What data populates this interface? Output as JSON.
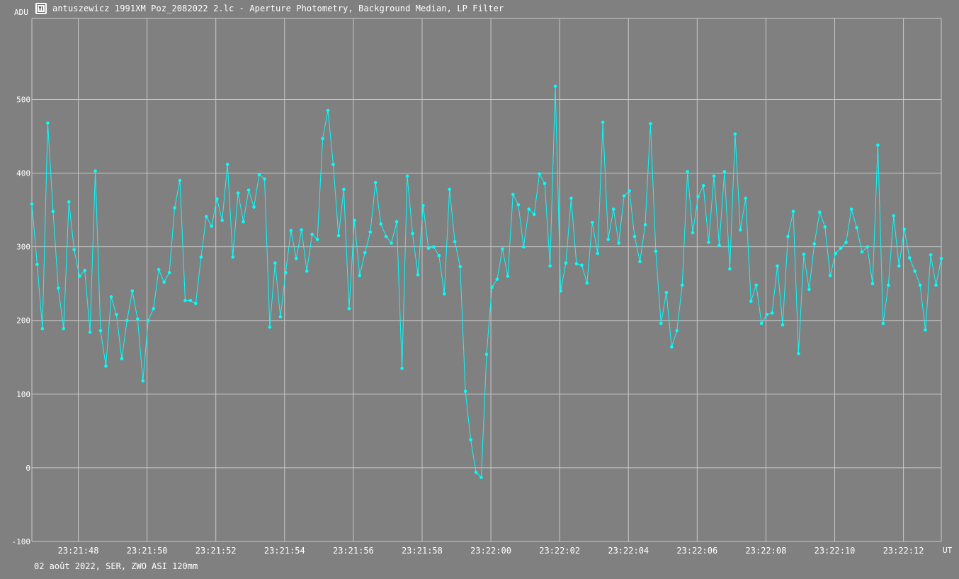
{
  "window": {
    "icon": "chart-app-icon",
    "title": "antuszewicz 1991XM Poz_2082022 2.lc - Aperture Photometry, Background Median, LP Filter"
  },
  "footer": {
    "info": "02 août 2022, SER, ZWO ASI 120mm"
  },
  "colors": {
    "background": "#808080",
    "grid": "#c8c8c8",
    "series": "#00ffff",
    "text": "#ffffff"
  },
  "chart_data": {
    "type": "line",
    "title": "",
    "ylabel": "ADU",
    "xlabel": "UT",
    "ylim": [
      -100,
      610
    ],
    "xlim": [
      "23:21:46.65",
      "23:22:13.10"
    ],
    "grid": true,
    "y_ticks": [
      -100,
      0,
      100,
      200,
      300,
      400,
      500
    ],
    "x_ticks": [
      "23:21:48",
      "23:21:50",
      "23:21:52",
      "23:21:54",
      "23:21:56",
      "23:21:58",
      "23:22:00",
      "23:22:02",
      "23:22:04",
      "23:22:06",
      "23:22:08",
      "23:22:10",
      "23:22:12"
    ],
    "marker": "dot",
    "series": [
      {
        "values": [
          358,
          276,
          189,
          468,
          348,
          244,
          189,
          361,
          296,
          260,
          268,
          184,
          403,
          186,
          138,
          232,
          208,
          148,
          200,
          240,
          202,
          118,
          200,
          216,
          269,
          252,
          265,
          353,
          390,
          227,
          227,
          223,
          286,
          341,
          328,
          365,
          336,
          412,
          286,
          373,
          334,
          377,
          354,
          398,
          392,
          191,
          278,
          205,
          265,
          322,
          284,
          323,
          267,
          317,
          310,
          447,
          485,
          412,
          315,
          378,
          216,
          336,
          261,
          292,
          320,
          387,
          331,
          314,
          305,
          334,
          135,
          396,
          318,
          262,
          356,
          298,
          300,
          288,
          236,
          378,
          307,
          273,
          104,
          38,
          -6,
          -13,
          154,
          245,
          256,
          297,
          260,
          371,
          357,
          300,
          351,
          344,
          399,
          386,
          274,
          518,
          240,
          278,
          366,
          277,
          275,
          251,
          333,
          291,
          469,
          310,
          351,
          305,
          369,
          376,
          314,
          280,
          330,
          467,
          294,
          196,
          238,
          164,
          186,
          248,
          402,
          319,
          368,
          383,
          306,
          396,
          302,
          402,
          270,
          453,
          323,
          366,
          226,
          248,
          196,
          208,
          210,
          274,
          194,
          314,
          348,
          155,
          290,
          242,
          304,
          347,
          327,
          261,
          291,
          298,
          306,
          351,
          326,
          293,
          300,
          250,
          438,
          196,
          248,
          342,
          274,
          324,
          285,
          267,
          248,
          187,
          289,
          248,
          284
        ]
      }
    ]
  }
}
